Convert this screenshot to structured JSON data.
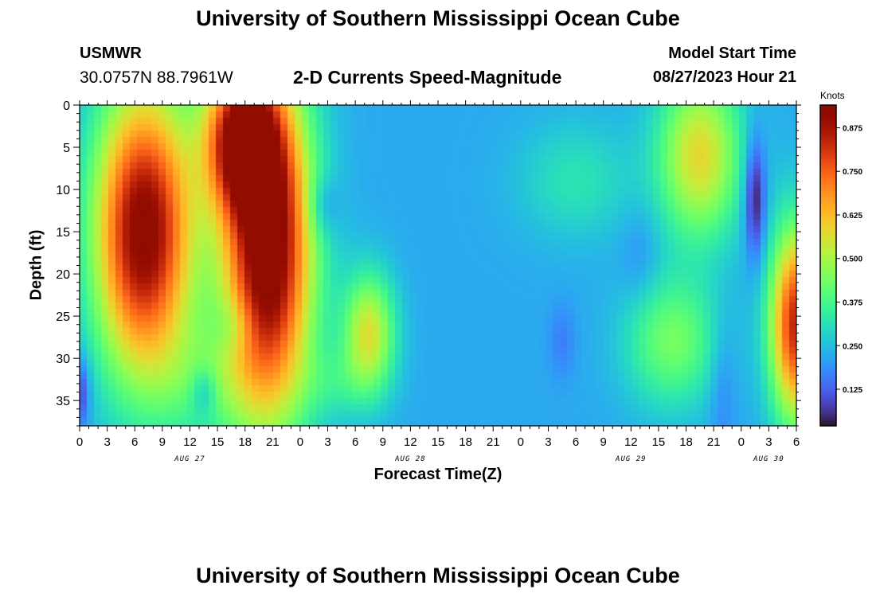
{
  "header": {
    "title": "University of Southern Mississippi Ocean Cube",
    "station": "USMWR",
    "coords": "30.0757N  88.7961W",
    "subtitle": "2-D Currents Speed-Magnitude",
    "model_start_label": "Model Start Time",
    "model_start_value": "08/27/2023 Hour 21"
  },
  "footer": {
    "title": "University of Southern Mississippi Ocean Cube"
  },
  "chart_data": {
    "type": "heatmap",
    "title": "2-D Currents Speed-Magnitude",
    "xlabel": "Forecast Time(Z)",
    "ylabel": "Depth (ft)",
    "x_unit": "forecast hours from 0Z Aug 27",
    "x_range": [
      0,
      78
    ],
    "x_ticks": [
      {
        "x": 0,
        "label": "0"
      },
      {
        "x": 3,
        "label": "3"
      },
      {
        "x": 6,
        "label": "6"
      },
      {
        "x": 9,
        "label": "9"
      },
      {
        "x": 12,
        "label": "12"
      },
      {
        "x": 15,
        "label": "15"
      },
      {
        "x": 18,
        "label": "18"
      },
      {
        "x": 21,
        "label": "21"
      },
      {
        "x": 24,
        "label": "0"
      },
      {
        "x": 27,
        "label": "3"
      },
      {
        "x": 30,
        "label": "6"
      },
      {
        "x": 33,
        "label": "9"
      },
      {
        "x": 36,
        "label": "12"
      },
      {
        "x": 39,
        "label": "15"
      },
      {
        "x": 42,
        "label": "18"
      },
      {
        "x": 45,
        "label": "21"
      },
      {
        "x": 48,
        "label": "0"
      },
      {
        "x": 51,
        "label": "3"
      },
      {
        "x": 54,
        "label": "6"
      },
      {
        "x": 57,
        "label": "9"
      },
      {
        "x": 60,
        "label": "12"
      },
      {
        "x": 63,
        "label": "15"
      },
      {
        "x": 66,
        "label": "18"
      },
      {
        "x": 69,
        "label": "21"
      },
      {
        "x": 72,
        "label": "0"
      },
      {
        "x": 75,
        "label": "3"
      },
      {
        "x": 78,
        "label": "6"
      }
    ],
    "date_labels": [
      {
        "x": 12,
        "label": "AUG 27"
      },
      {
        "x": 36,
        "label": "AUG 28"
      },
      {
        "x": 60,
        "label": "AUG 29"
      },
      {
        "x": 75,
        "label": "AUG 30"
      }
    ],
    "y_range": [
      0,
      38
    ],
    "y_inverted": true,
    "y_ticks": [
      0,
      5,
      10,
      15,
      20,
      25,
      30,
      35
    ],
    "color_scale": {
      "unit": "Knots",
      "min": 0.02,
      "max": 0.94,
      "ticks": [
        {
          "value": 0.125,
          "label": "0.125"
        },
        {
          "value": 0.25,
          "label": "0.250"
        },
        {
          "value": 0.375,
          "label": "0.375"
        },
        {
          "value": 0.5,
          "label": "0.500"
        },
        {
          "value": 0.625,
          "label": "0.625"
        },
        {
          "value": 0.75,
          "label": "0.750"
        },
        {
          "value": 0.875,
          "label": "0.875"
        }
      ],
      "colormap": "turbo"
    },
    "grid": false,
    "field": {
      "base": 0.22,
      "blobs": [
        {
          "x": 7,
          "y": 15,
          "sx": 3.8,
          "sy": 12,
          "v": 0.73
        },
        {
          "x": 20.5,
          "y": 17,
          "sx": 3.4,
          "sy": 14,
          "v": 0.78
        },
        {
          "x": 17.5,
          "y": 4,
          "sx": 2.8,
          "sy": 6,
          "v": 0.58
        },
        {
          "x": 67.5,
          "y": 6,
          "sx": 3.2,
          "sy": 7,
          "v": 0.36
        },
        {
          "x": 31.5,
          "y": 27,
          "sx": 2.0,
          "sy": 5,
          "v": 0.34
        },
        {
          "x": 64.5,
          "y": 28,
          "sx": 3.6,
          "sy": 5.5,
          "v": 0.22
        },
        {
          "x": 78,
          "y": 26,
          "sx": 2.0,
          "sy": 8,
          "v": 0.62
        },
        {
          "x": 14,
          "y": 33,
          "sx": 4.0,
          "sy": 5,
          "v": 0.12
        },
        {
          "x": 54,
          "y": 9,
          "sx": 4.5,
          "sy": 5,
          "v": 0.1
        },
        {
          "x": 28,
          "y": 33,
          "sx": 3.0,
          "sy": 3,
          "v": 0.08
        },
        {
          "x": 13.5,
          "y": 34,
          "sx": 1.0,
          "sy": 2,
          "v": -0.12
        },
        {
          "x": 17,
          "y": 26,
          "sx": 1.5,
          "sy": 2.5,
          "v": -0.08
        },
        {
          "x": 26.5,
          "y": 12,
          "sx": 1.2,
          "sy": 2.5,
          "v": -0.1
        },
        {
          "x": 73.5,
          "y": 11,
          "sx": 0.8,
          "sy": 5,
          "v": -0.22
        },
        {
          "x": 0,
          "y": 34,
          "sx": 0.8,
          "sy": 3,
          "v": -0.16
        },
        {
          "x": 70,
          "y": 33,
          "sx": 1.0,
          "sy": 6,
          "v": -0.06
        },
        {
          "x": 61,
          "y": 18,
          "sx": 1.5,
          "sy": 4,
          "v": -0.05
        },
        {
          "x": 52.5,
          "y": 28,
          "sx": 1.0,
          "sy": 3,
          "v": -0.06
        }
      ]
    }
  }
}
